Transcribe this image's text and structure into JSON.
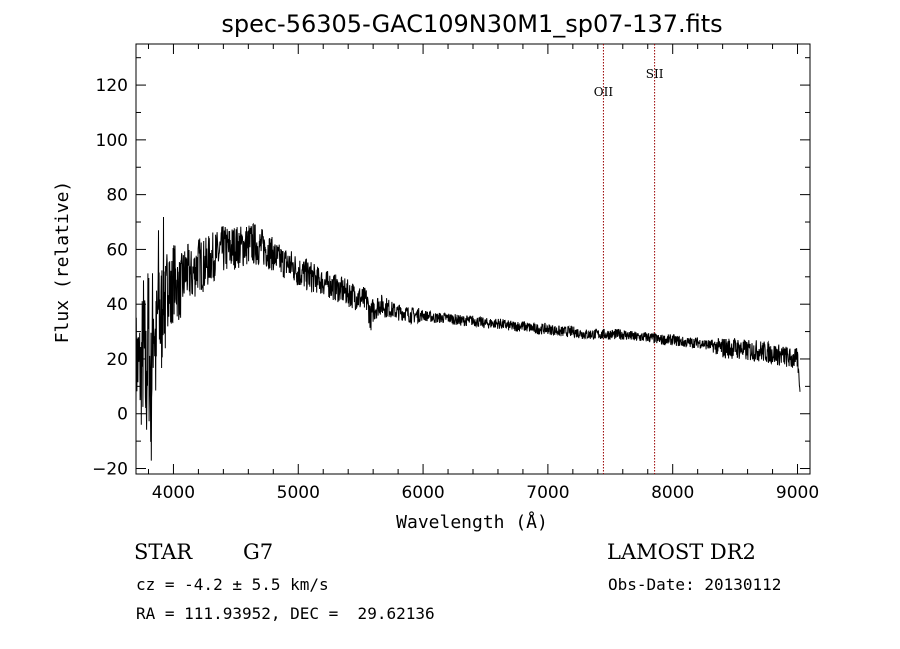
{
  "chart_data": {
    "type": "line",
    "title": "spec-56305-GAC109N30M1_sp07-137.fits",
    "xlabel": "Wavelength (Å)",
    "ylabel": "Flux (relative)",
    "xlim": [
      3700,
      9100
    ],
    "ylim": [
      -22,
      135
    ],
    "xticks": [
      4000,
      5000,
      6000,
      7000,
      8000,
      9000
    ],
    "yticks": [
      -20,
      0,
      20,
      40,
      60,
      80,
      100,
      120
    ],
    "grid": false,
    "series": [
      {
        "x": [
          3700,
          3740,
          3760,
          3780,
          3800,
          3820,
          3840,
          3860,
          3880,
          3900,
          3920,
          3940,
          3960,
          3980,
          4000,
          4050,
          4100,
          4150,
          4200,
          4250,
          4300,
          4350,
          4400,
          4450,
          4500,
          4550,
          4600,
          4650,
          4700,
          4750,
          4800,
          4850,
          4900,
          4950,
          5000,
          5050,
          5100,
          5150,
          5200,
          5250,
          5300,
          5350,
          5400,
          5450,
          5500,
          5550,
          5580,
          5600,
          5650,
          5700,
          5750,
          5800,
          5850,
          5900,
          5950,
          6000,
          6100,
          6200,
          6300,
          6400,
          6500,
          6600,
          6700,
          6800,
          6900,
          7000,
          7100,
          7200,
          7300,
          7400,
          7500,
          7600,
          7700,
          7800,
          7900,
          8000,
          8100,
          8200,
          8300,
          8400,
          8500,
          8600,
          8700,
          8800,
          8900,
          8950,
          9000,
          9020
        ],
        "y": [
          20,
          15,
          25,
          10,
          30,
          5,
          40,
          20,
          45,
          30,
          50,
          35,
          55,
          40,
          50,
          45,
          52,
          50,
          55,
          54,
          57,
          58,
          60,
          60,
          61,
          61,
          62,
          62,
          61,
          60,
          58,
          56,
          55,
          54,
          52,
          51,
          50,
          49,
          48,
          47,
          46,
          45,
          44,
          43,
          42,
          41,
          35,
          38,
          40,
          39,
          38,
          37,
          37,
          36,
          36,
          36,
          35,
          35,
          34,
          34,
          33,
          33,
          32,
          32,
          31,
          31,
          30,
          30,
          29,
          29,
          29,
          29,
          28,
          28,
          27,
          27,
          26,
          26,
          25,
          24,
          24,
          23,
          23,
          22,
          21,
          20,
          20,
          8
        ],
        "noise": [
          18,
          22,
          28,
          30,
          30,
          30,
          28,
          26,
          25,
          24,
          22,
          20,
          18,
          16,
          14,
          12,
          11,
          10,
          10,
          10,
          9,
          9,
          9,
          9,
          8,
          8,
          8,
          8,
          7,
          7,
          6,
          6,
          6,
          6,
          6,
          6,
          6,
          5,
          5,
          5,
          5,
          5,
          5,
          5,
          5,
          5,
          5,
          5,
          4,
          4,
          3,
          3,
          3,
          3,
          3,
          2,
          2,
          2,
          2,
          2,
          2,
          2,
          2,
          2,
          2,
          2,
          2,
          2,
          2,
          2,
          2,
          2,
          2,
          2,
          2,
          2,
          2,
          2,
          2,
          4,
          4,
          4,
          4,
          4,
          4,
          4,
          4,
          0
        ]
      }
    ],
    "lines": [
      {
        "x": 7445,
        "label": "OII",
        "color": "#990000"
      },
      {
        "x": 7855,
        "label": "SII",
        "color": "#990000"
      }
    ]
  },
  "info": {
    "object_class": "STAR",
    "subclass": "G7",
    "survey": "LAMOST DR2",
    "redshift": "cz = -4.2 ± 5.5 km/s",
    "obs_date": "Obs-Date: 20130112",
    "coords": "RA = 111.93952, DEC =  29.62136"
  }
}
